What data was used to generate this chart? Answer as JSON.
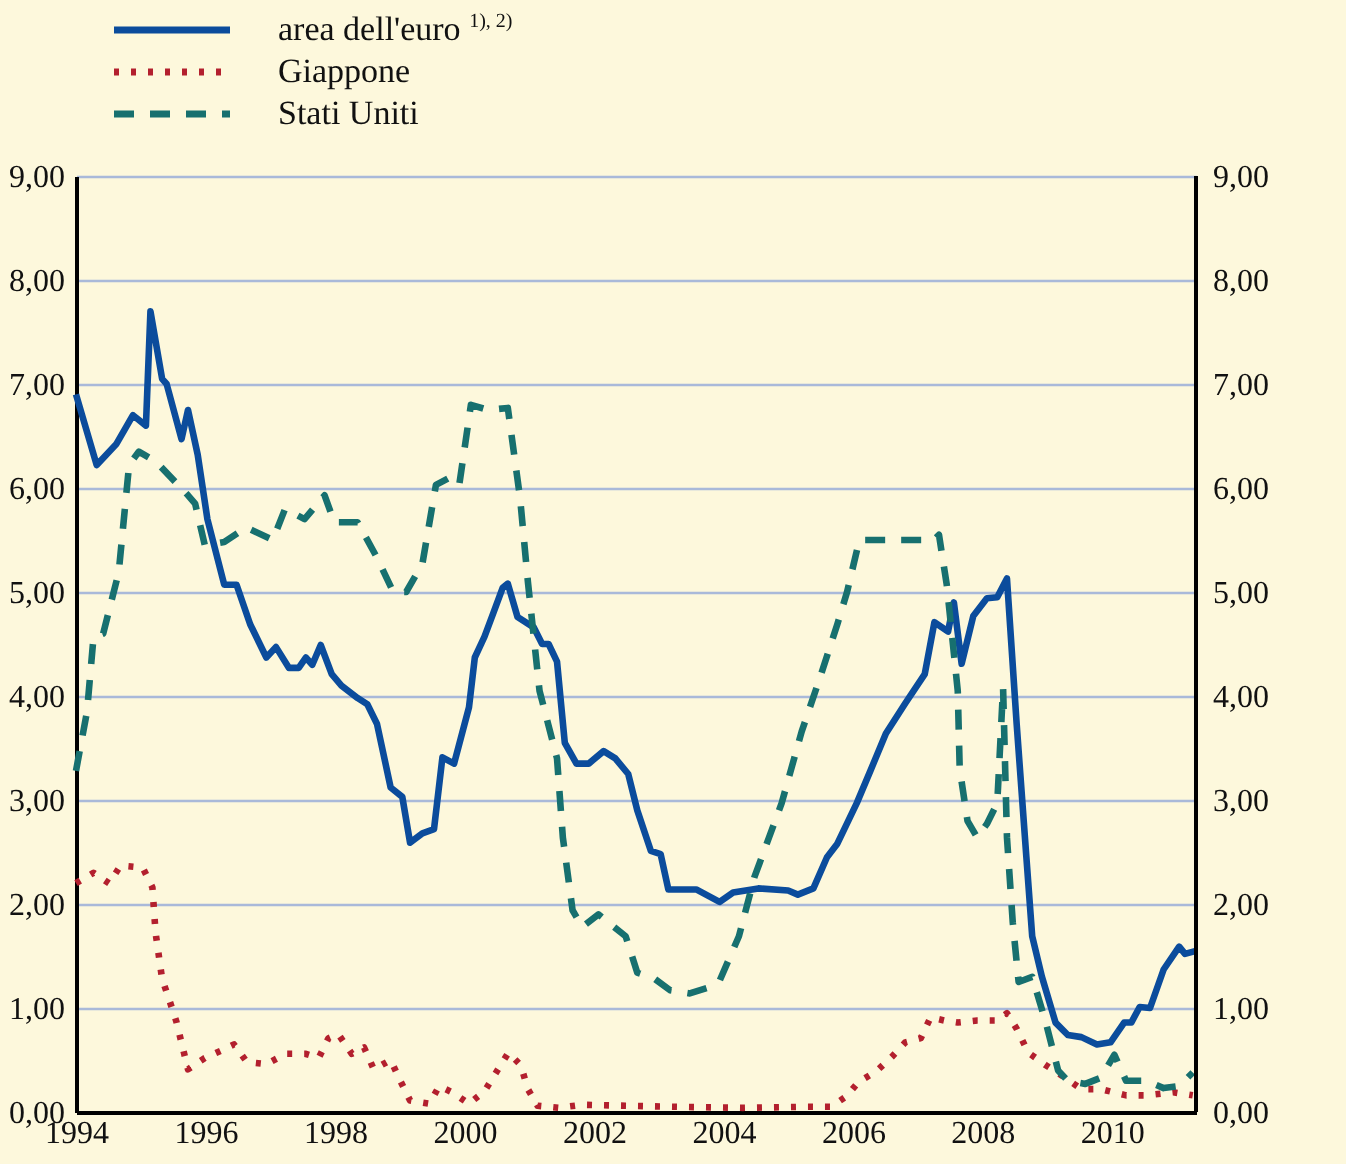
{
  "chart_data": {
    "type": "line",
    "xlim": [
      1994,
      2011.3
    ],
    "xticks": [
      1994,
      1996,
      1998,
      2000,
      2002,
      2004,
      2006,
      2008,
      2010
    ],
    "ylim": [
      0,
      9
    ],
    "yticks": [
      {
        "value": 0,
        "label": "0,00"
      },
      {
        "value": 1,
        "label": "1,00"
      },
      {
        "value": 2,
        "label": "2,00"
      },
      {
        "value": 3,
        "label": "3,00"
      },
      {
        "value": 4,
        "label": "4,00"
      },
      {
        "value": 5,
        "label": "5,00"
      },
      {
        "value": 6,
        "label": "6,00"
      },
      {
        "value": 7,
        "label": "7,00"
      },
      {
        "value": 8,
        "label": "8,00"
      },
      {
        "value": 9,
        "label": "9,00"
      }
    ],
    "y2lim": [
      0,
      9
    ],
    "y2ticks": [
      {
        "value": 0,
        "label": "0,00"
      },
      {
        "value": 1,
        "label": "1,00"
      },
      {
        "value": 2,
        "label": "2,00"
      },
      {
        "value": 3,
        "label": "3,00"
      },
      {
        "value": 4,
        "label": "4,00"
      },
      {
        "value": 5,
        "label": "5,00"
      },
      {
        "value": 6,
        "label": "6,00"
      },
      {
        "value": 7,
        "label": "7,00"
      },
      {
        "value": 8,
        "label": "8,00"
      },
      {
        "value": 9,
        "label": "9,00"
      }
    ],
    "grid": "y",
    "legend": "top left",
    "marker": "none",
    "series": [
      {
        "name": "area dell'euro $^{1), 2)}$",
        "color": "#0b4c9c",
        "line_style": "solid",
        "x": [
          1994.0,
          1994.32,
          1994.62,
          1994.88,
          1995.08,
          1995.15,
          1995.33,
          1995.4,
          1995.63,
          1995.73,
          1995.88,
          1996.03,
          1996.29,
          1996.48,
          1996.69,
          1996.94,
          1997.09,
          1997.29,
          1997.44,
          1997.55,
          1997.65,
          1997.78,
          1997.95,
          1998.1,
          1998.35,
          1998.5,
          1998.65,
          1998.86,
          1999.04,
          1999.16,
          1999.35,
          1999.53,
          1999.66,
          1999.84,
          2000.07,
          2000.16,
          2000.31,
          2000.46,
          2000.59,
          2000.67,
          2000.82,
          2001.07,
          2001.2,
          2001.3,
          2001.43,
          2001.55,
          2001.73,
          2001.92,
          2002.15,
          2002.33,
          2002.53,
          2002.67,
          2002.88,
          2003.03,
          2003.15,
          2003.58,
          2003.94,
          2004.15,
          2004.54,
          2005.0,
          2005.15,
          2005.39,
          2005.6,
          2005.76,
          2006.06,
          2006.27,
          2006.51,
          2006.81,
          2007.11,
          2007.26,
          2007.47,
          2007.56,
          2007.68,
          2007.86,
          2008.07,
          2008.23,
          2008.38,
          2008.53,
          2008.68,
          2008.77,
          2008.92,
          2009.13,
          2009.32,
          2009.53,
          2009.77,
          2009.98,
          2010.19,
          2010.3,
          2010.43,
          2010.59,
          2010.8,
          2011.04,
          2011.13,
          2011.3
        ],
        "values": [
          6.9,
          6.22,
          6.42,
          6.7,
          6.6,
          7.7,
          7.05,
          7.0,
          6.47,
          6.75,
          6.32,
          5.7,
          5.07,
          5.07,
          4.69,
          4.37,
          4.47,
          4.27,
          4.27,
          4.37,
          4.3,
          4.49,
          4.21,
          4.1,
          3.98,
          3.92,
          3.73,
          3.12,
          3.03,
          2.59,
          2.68,
          2.72,
          3.41,
          3.35,
          3.89,
          4.37,
          4.57,
          4.82,
          5.04,
          5.08,
          4.76,
          4.66,
          4.5,
          4.5,
          4.33,
          3.55,
          3.35,
          3.35,
          3.47,
          3.4,
          3.25,
          2.9,
          2.51,
          2.48,
          2.14,
          2.14,
          2.02,
          2.11,
          2.15,
          2.13,
          2.09,
          2.15,
          2.45,
          2.58,
          2.97,
          3.28,
          3.64,
          3.93,
          4.21,
          4.71,
          4.62,
          4.9,
          4.31,
          4.77,
          4.94,
          4.95,
          5.13,
          3.73,
          2.45,
          1.69,
          1.3,
          0.86,
          0.74,
          0.72,
          0.65,
          0.67,
          0.86,
          0.86,
          1.01,
          1.0,
          1.37,
          1.59,
          1.52,
          1.55
        ]
      },
      {
        "name": "Giappone",
        "color": "#b3202e",
        "line_style": "dotted",
        "x": [
          1994.0,
          1994.27,
          1994.51,
          1994.69,
          1995.03,
          1995.18,
          1995.23,
          1995.33,
          1995.45,
          1995.55,
          1995.73,
          1995.99,
          1996.24,
          1996.44,
          1996.64,
          1996.94,
          1997.24,
          1997.54,
          1997.75,
          1997.9,
          1998.05,
          1998.26,
          1998.45,
          1998.6,
          1998.86,
          1999.01,
          1999.16,
          1999.46,
          1999.61,
          1999.81,
          2000.07,
          2000.31,
          2000.52,
          2000.68,
          2000.87,
          2000.98,
          2001.13,
          2001.46,
          2001.82,
          2002.49,
          2003.27,
          2004.3,
          2005.3,
          2005.66,
          2005.9,
          2006.09,
          2006.36,
          2006.6,
          2006.81,
          2007.05,
          2007.2,
          2007.41,
          2007.62,
          2007.92,
          2008.23,
          2008.38,
          2008.53,
          2008.71,
          2008.98,
          2009.23,
          2009.53,
          2009.83,
          2010.22,
          2010.53,
          2010.95,
          2011.25
        ],
        "values": [
          2.2,
          2.3,
          2.2,
          2.37,
          2.35,
          2.16,
          1.72,
          1.28,
          1.06,
          0.87,
          0.41,
          0.52,
          0.59,
          0.65,
          0.48,
          0.46,
          0.56,
          0.56,
          0.52,
          0.71,
          0.75,
          0.56,
          0.62,
          0.41,
          0.5,
          0.3,
          0.11,
          0.08,
          0.25,
          0.19,
          0.08,
          0.2,
          0.41,
          0.57,
          0.45,
          0.22,
          0.06,
          0.04,
          0.07,
          0.06,
          0.05,
          0.04,
          0.05,
          0.05,
          0.15,
          0.29,
          0.39,
          0.53,
          0.67,
          0.71,
          0.91,
          0.88,
          0.86,
          0.88,
          0.88,
          0.95,
          0.8,
          0.57,
          0.45,
          0.35,
          0.22,
          0.22,
          0.16,
          0.16,
          0.19,
          0.16
        ]
      },
      {
        "name": "Stati Uniti",
        "color": "#17706f",
        "line_style": "dashed",
        "x": [
          1994.0,
          1994.17,
          1994.27,
          1994.42,
          1994.66,
          1994.82,
          1994.97,
          1995.24,
          1995.73,
          1995.84,
          1995.99,
          1996.29,
          1996.63,
          1997.04,
          1997.23,
          1997.53,
          1997.84,
          1997.99,
          1998.35,
          1998.65,
          1998.9,
          1999.1,
          1999.35,
          1999.56,
          1999.77,
          1999.92,
          2000.1,
          2000.37,
          2000.67,
          2000.86,
          2000.98,
          2001.16,
          2001.43,
          2001.52,
          2001.67,
          2001.82,
          2002.07,
          2002.49,
          2002.67,
          2002.94,
          2003.18,
          2003.48,
          2003.79,
          2003.94,
          2004.24,
          2004.48,
          2004.9,
          2005.21,
          2005.51,
          2005.76,
          2005.91,
          2006.1,
          2007.25,
          2007.33,
          2007.45,
          2007.62,
          2007.65,
          2007.77,
          2007.92,
          2008.07,
          2008.23,
          2008.32,
          2008.38,
          2008.47,
          2008.56,
          2008.77,
          2008.98,
          2009.17,
          2009.32,
          2009.59,
          2009.83,
          2010.04,
          2010.22,
          2010.53,
          2010.8,
          2011.04,
          2011.25
        ],
        "values": [
          3.28,
          3.85,
          4.56,
          4.6,
          5.19,
          6.22,
          6.35,
          6.25,
          5.93,
          5.85,
          5.45,
          5.48,
          5.62,
          5.5,
          5.8,
          5.7,
          5.93,
          5.67,
          5.67,
          5.33,
          5.0,
          5.0,
          5.27,
          6.03,
          6.1,
          6.03,
          6.8,
          6.75,
          6.77,
          5.9,
          5.1,
          4.05,
          3.4,
          2.64,
          1.94,
          1.78,
          1.9,
          1.69,
          1.34,
          1.28,
          1.17,
          1.14,
          1.2,
          1.26,
          1.69,
          2.26,
          2.97,
          3.66,
          4.21,
          4.69,
          5.0,
          5.5,
          5.5,
          5.55,
          5.07,
          4.05,
          3.3,
          2.8,
          2.64,
          2.77,
          2.97,
          4.08,
          2.64,
          1.82,
          1.25,
          1.3,
          0.86,
          0.4,
          0.3,
          0.27,
          0.33,
          0.55,
          0.3,
          0.3,
          0.23,
          0.25,
          0.38
        ]
      }
    ]
  }
}
